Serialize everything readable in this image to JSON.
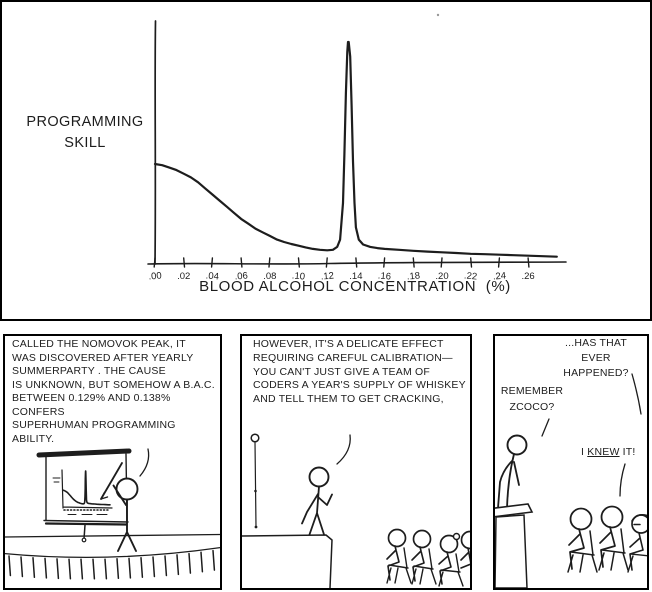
{
  "colors": {
    "ink": "#1d1d1d",
    "curve_red": "#e2201c",
    "speck_gray": "#999999",
    "paper": "#ffffff"
  },
  "chart_panel": {
    "ylabel_line1": "PROGRAMMING",
    "ylabel_line2": "SKILL",
    "xlabel": "BLOOD ALCOHOL CONCENTRATION  (%)"
  },
  "panel1": {
    "line1": "CALLED THE NOMOVOK PEAK, IT",
    "line2": "WAS DISCOVERED AFTER YEARLY",
    "line3": "SUMMERPARTY . THE CAUSE",
    "line4": "IS UNKNOWN, BUT SOMEHOW A B.A.C.",
    "line5": "BETWEEN 0.129% AND 0.138% CONFERS",
    "line6": "SUPERHUMAN PROGRAMMING ABILITY."
  },
  "panel2": {
    "line1": "HOWEVER, IT'S A DELICATE EFFECT",
    "line2": "REQUIRING CAREFUL CALIBRATION—",
    "line3": "YOU CAN'T JUST GIVE A TEAM OF",
    "line4": "CODERS A YEAR'S SUPPLY OF WHISKEY",
    "line5": "AND TELL THEM TO GET CRACKING,"
  },
  "panel3": {
    "bubble1_line1": "...HAS THAT",
    "bubble1_line2": "EVER HAPPENED?",
    "bubble2_line1": "REMEMBER",
    "bubble2_line2": "ZCOCO?",
    "bubble3_prefix": "I ",
    "bubble3_underlined": "KNEW",
    "bubble3_suffix": " IT!"
  },
  "chart_data": {
    "type": "line",
    "title": "",
    "xlabel": "BLOOD ALCOHOL CONCENTRATION (%)",
    "ylabel": "PROGRAMMING SKILL",
    "xlim": [
      0.0,
      0.285
    ],
    "ylim": [
      0,
      1
    ],
    "grid": false,
    "x_ticks": [
      ".00",
      ".02",
      ".04",
      ".06",
      ".08",
      ".10",
      ".12",
      ".14",
      ".16",
      ".18",
      ".20",
      ".22",
      ".24",
      ".26"
    ],
    "x_tick_values": [
      0.0,
      0.02,
      0.04,
      0.06,
      0.08,
      0.1,
      0.12,
      0.14,
      0.16,
      0.18,
      0.2,
      0.22,
      0.24,
      0.26
    ],
    "peak_range_stated": [
      0.129,
      0.138
    ],
    "series": [
      {
        "name": "programming-skill-vs-bac",
        "color": "#e2201c",
        "points": [
          [
            0.0,
            0.41
          ],
          [
            0.005,
            0.405
          ],
          [
            0.01,
            0.395
          ],
          [
            0.015,
            0.385
          ],
          [
            0.02,
            0.37
          ],
          [
            0.025,
            0.355
          ],
          [
            0.03,
            0.335
          ],
          [
            0.035,
            0.31
          ],
          [
            0.04,
            0.285
          ],
          [
            0.045,
            0.26
          ],
          [
            0.05,
            0.235
          ],
          [
            0.055,
            0.21
          ],
          [
            0.06,
            0.185
          ],
          [
            0.065,
            0.165
          ],
          [
            0.07,
            0.145
          ],
          [
            0.075,
            0.13
          ],
          [
            0.08,
            0.115
          ],
          [
            0.085,
            0.1
          ],
          [
            0.09,
            0.09
          ],
          [
            0.095,
            0.082
          ],
          [
            0.1,
            0.075
          ],
          [
            0.105,
            0.068
          ],
          [
            0.11,
            0.062
          ],
          [
            0.115,
            0.058
          ],
          [
            0.12,
            0.056
          ],
          [
            0.124,
            0.058
          ],
          [
            0.127,
            0.07
          ],
          [
            0.129,
            0.1
          ],
          [
            0.131,
            0.25
          ],
          [
            0.132,
            0.45
          ],
          [
            0.133,
            0.7
          ],
          [
            0.134,
            0.87
          ],
          [
            0.1345,
            0.91
          ],
          [
            0.135,
            0.91
          ],
          [
            0.136,
            0.85
          ],
          [
            0.137,
            0.65
          ],
          [
            0.138,
            0.42
          ],
          [
            0.139,
            0.25
          ],
          [
            0.14,
            0.15
          ],
          [
            0.142,
            0.1
          ],
          [
            0.145,
            0.08
          ],
          [
            0.15,
            0.07
          ],
          [
            0.155,
            0.065
          ],
          [
            0.16,
            0.062
          ],
          [
            0.17,
            0.058
          ],
          [
            0.18,
            0.054
          ],
          [
            0.19,
            0.051
          ],
          [
            0.2,
            0.048
          ],
          [
            0.21,
            0.045
          ],
          [
            0.22,
            0.042
          ],
          [
            0.23,
            0.04
          ],
          [
            0.24,
            0.038
          ],
          [
            0.25,
            0.036
          ],
          [
            0.26,
            0.034
          ],
          [
            0.27,
            0.032
          ],
          [
            0.28,
            0.03
          ]
        ]
      }
    ]
  }
}
